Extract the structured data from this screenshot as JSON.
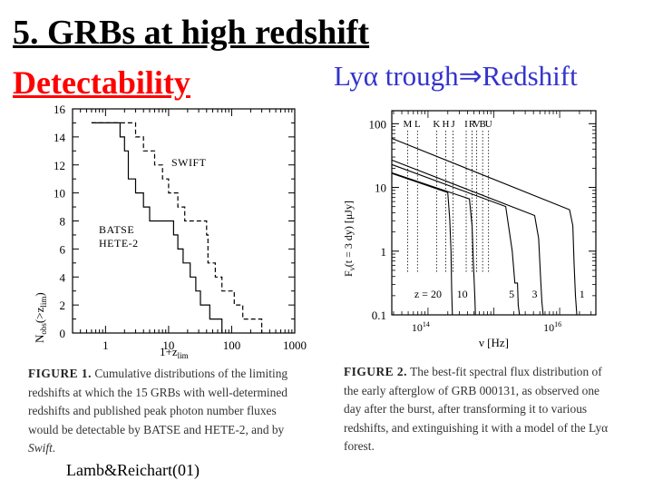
{
  "slide": {
    "title": "5. GRBs at high redshift",
    "subtitle": "Detectability",
    "lya_prefix": "Ly",
    "lya_alpha": "α",
    "lya_trough": " trough",
    "lya_arrow": "⇒",
    "lya_redshift": "Redshift",
    "credit": "Lamb&Reichart(01)"
  },
  "figure1": {
    "label": "FIGURE 1.",
    "caption": " Cumulative distributions of the limiting redshifts at which the 15 GRBs with well-determined redshifts and published peak photon number fluxes would be detectable by BATSE and HETE-2, and by ",
    "caption_italic": "Swift",
    "caption_end": "."
  },
  "figure2": {
    "label": "FIGURE 2.",
    "caption": " The best-fit spectral flux distribution of the early afterglow of GRB 000131, as observed one day after the burst, after transforming it to various redshifts, and extinguishing it with a model of the Lyα forest."
  },
  "chart_data": [
    {
      "type": "line",
      "xlabel": "1+z_lim",
      "ylabel": "N_obs(>z_lim)",
      "x_scale": "log",
      "xlim": [
        0.3,
        1000
      ],
      "ylim": [
        0,
        16
      ],
      "x_ticks": [
        "1",
        "10",
        "100",
        "1000"
      ],
      "y_ticks": [
        "0",
        "2",
        "4",
        "6",
        "8",
        "10",
        "12",
        "14",
        "16"
      ],
      "series": [
        {
          "name": "BATSE HETE-2",
          "style": "solid",
          "points": [
            [
              0.6,
              15
            ],
            [
              1.7,
              15
            ],
            [
              1.7,
              14
            ],
            [
              2.0,
              14
            ],
            [
              2.0,
              13
            ],
            [
              2.3,
              13
            ],
            [
              2.3,
              11
            ],
            [
              3.0,
              11
            ],
            [
              3.0,
              10
            ],
            [
              4.0,
              10
            ],
            [
              4.0,
              9
            ],
            [
              5.0,
              9
            ],
            [
              5.0,
              8
            ],
            [
              12.0,
              8
            ],
            [
              12.0,
              7
            ],
            [
              14.0,
              7
            ],
            [
              14.0,
              6
            ],
            [
              17.0,
              6
            ],
            [
              17.0,
              5
            ],
            [
              22.0,
              5
            ],
            [
              22.0,
              4
            ],
            [
              27.0,
              4
            ],
            [
              27.0,
              3
            ],
            [
              32.0,
              3
            ],
            [
              32.0,
              2
            ],
            [
              45.0,
              2
            ],
            [
              45.0,
              1
            ],
            [
              70.0,
              1
            ],
            [
              70.0,
              0
            ]
          ]
        },
        {
          "name": "SWIFT",
          "style": "dashed",
          "points": [
            [
              0.6,
              15
            ],
            [
              3.0,
              15
            ],
            [
              3.0,
              14
            ],
            [
              4.0,
              14
            ],
            [
              4.0,
              13
            ],
            [
              6.0,
              13
            ],
            [
              6.0,
              12
            ],
            [
              8.0,
              12
            ],
            [
              8.0,
              11
            ],
            [
              10.0,
              11
            ],
            [
              10.0,
              10
            ],
            [
              14.0,
              10
            ],
            [
              14.0,
              9
            ],
            [
              18.0,
              9
            ],
            [
              18.0,
              8
            ],
            [
              40.0,
              8
            ],
            [
              40.0,
              7
            ],
            [
              42.0,
              7
            ],
            [
              42.0,
              5
            ],
            [
              55.0,
              5
            ],
            [
              55.0,
              4
            ],
            [
              70.0,
              4
            ],
            [
              70.0,
              3
            ],
            [
              110.0,
              3
            ],
            [
              110.0,
              2
            ],
            [
              150.0,
              2
            ],
            [
              150.0,
              1
            ],
            [
              300.0,
              1
            ],
            [
              300.0,
              0
            ]
          ]
        }
      ],
      "annotations": [
        "SWIFT",
        "BATSE",
        "HETE-2"
      ]
    },
    {
      "type": "line",
      "xlabel": "ν [Hz]",
      "ylabel": "F_ν(t = 3 dy) [μJy]",
      "x_scale": "log",
      "y_scale": "log",
      "xlim": [
        13.45,
        16.55
      ],
      "ylim": [
        0.1,
        160
      ],
      "x_ticks": [
        "10^14",
        "10^16"
      ],
      "y_ticks": [
        "100",
        "10",
        "1",
        "0.1"
      ],
      "band_labels": [
        "M",
        "L",
        "K",
        "H",
        "J",
        "I",
        "R",
        "V",
        "B",
        "U"
      ],
      "band_log_nu": [
        13.69,
        13.84,
        14.13,
        14.27,
        14.38,
        14.58,
        14.67,
        14.74,
        14.83,
        14.92
      ],
      "redshift_labels": [
        "z = 20",
        "10",
        "5",
        "3",
        "1"
      ],
      "series": [
        {
          "name": "z = 1",
          "log_nu": [
            13.45,
            16.15,
            16.2,
            16.22,
            16.24,
            16.26
          ],
          "log_f": [
            1.77,
            0.65,
            0.4,
            -0.2,
            -0.7,
            -1.0
          ]
        },
        {
          "name": "z = 3",
          "log_nu": [
            13.45,
            15.62,
            15.68,
            15.71,
            15.73,
            15.75
          ],
          "log_f": [
            1.43,
            0.56,
            0.2,
            -0.4,
            -0.8,
            -1.0
          ]
        },
        {
          "name": "z = 5",
          "log_nu": [
            13.45,
            15.18,
            15.28,
            15.32,
            15.36,
            15.37,
            15.39
          ],
          "log_f": [
            1.36,
            0.7,
            0.0,
            -0.5,
            -0.5,
            -0.85,
            -1.0
          ]
        },
        {
          "name": "z = 10",
          "log_nu": [
            13.45,
            14.63,
            14.67,
            14.69,
            14.71,
            14.72
          ],
          "log_f": [
            1.23,
            0.82,
            0.4,
            -0.2,
            -0.7,
            -1.0
          ]
        },
        {
          "name": "z = 20",
          "log_nu": [
            13.45,
            14.3,
            14.33,
            14.35,
            14.36,
            14.37
          ],
          "log_f": [
            1.22,
            0.92,
            0.5,
            0.0,
            -0.6,
            -1.0
          ]
        }
      ]
    }
  ]
}
